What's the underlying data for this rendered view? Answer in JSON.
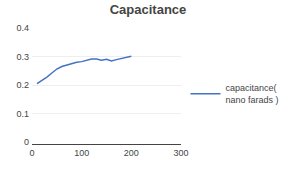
{
  "chart_data": {
    "type": "line",
    "title": "Capacitance",
    "x": [
      10,
      20,
      30,
      40,
      50,
      60,
      70,
      80,
      90,
      100,
      110,
      120,
      130,
      140,
      150,
      160,
      170,
      180,
      190,
      200
    ],
    "series": [
      {
        "name": "capacitance(\nnano farads )",
        "color": "#4472C4",
        "values": [
          0.205,
          0.215,
          0.228,
          0.242,
          0.256,
          0.265,
          0.27,
          0.276,
          0.28,
          0.282,
          0.287,
          0.291,
          0.291,
          0.287,
          0.29,
          0.284,
          0.289,
          0.293,
          0.297,
          0.301
        ]
      }
    ],
    "xlim": [
      0,
      300
    ],
    "xticks": [
      0,
      100,
      200,
      300
    ],
    "ylim": [
      0,
      0.4
    ],
    "yticks": [
      0,
      0.1,
      0.2,
      0.3,
      0.4
    ],
    "grid": true,
    "legend": "right"
  }
}
